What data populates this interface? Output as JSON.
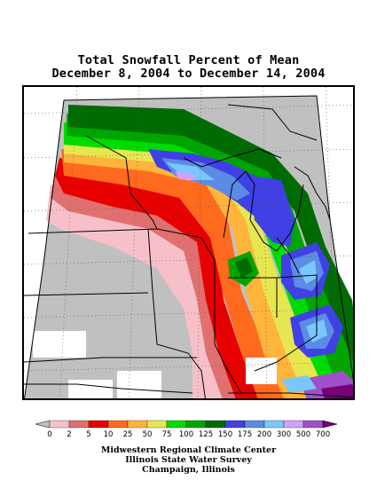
{
  "title": {
    "line1": "Total Snowfall Percent of Mean",
    "line2": "December 8, 2004 to December 14, 2004"
  },
  "legend": {
    "labels": [
      "0",
      "2",
      "5",
      "10",
      "25",
      "50",
      "75",
      "100",
      "125",
      "150",
      "175",
      "200",
      "300",
      "500",
      "700"
    ],
    "colors": [
      "#c0c0c0",
      "#f7c0c8",
      "#e07070",
      "#e60000",
      "#ff6a1e",
      "#ffb43c",
      "#e6e650",
      "#00dc00",
      "#00a500",
      "#006b00",
      "#4040e6",
      "#5a8ce6",
      "#78c8ff",
      "#d2a0ff",
      "#a050c8",
      "#780078"
    ]
  },
  "credits": {
    "line1": "Midwestern Regional Climate Center",
    "line2": "Illinois State Water Survey",
    "line3": "Champaign, Illinois"
  }
}
